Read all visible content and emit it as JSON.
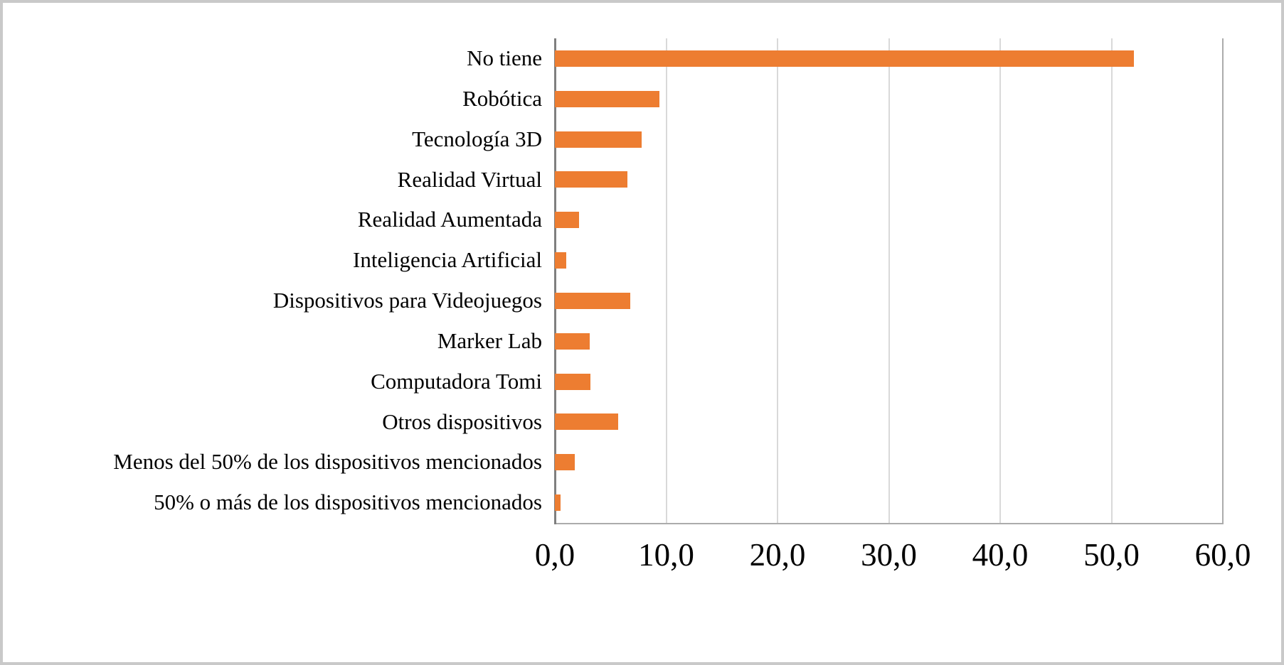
{
  "chart_data": {
    "type": "bar",
    "orientation": "horizontal",
    "categories": [
      "No tiene",
      "Robótica",
      "Tecnología 3D",
      "Realidad Virtual",
      "Realidad Aumentada",
      "Inteligencia Artificial",
      "Dispositivos para Videojuegos",
      "Marker Lab",
      "Computadora Tomi",
      "Otros dispositivos",
      "Menos del 50% de los dispositivos mencionados",
      "50% o más de los dispositivos mencionados"
    ],
    "values": [
      52.0,
      9.4,
      7.8,
      6.5,
      2.2,
      1.0,
      6.8,
      3.1,
      3.2,
      5.7,
      1.8,
      0.5
    ],
    "x_axis": {
      "min": 0,
      "max": 60,
      "step": 10,
      "tick_labels": [
        "0,0",
        "10,0",
        "20,0",
        "30,0",
        "40,0",
        "50,0",
        "60,0"
      ],
      "decimal_separator": ","
    },
    "title": "",
    "xlabel": "",
    "ylabel": "",
    "legend": "none",
    "grid": "vertical-only",
    "colors": {
      "bar": "#ed7d31",
      "gridline": "#d9d9d9",
      "axis_line": "#7f7f7f",
      "plot_border": "#ababab",
      "frame_border": "#c9c9c9",
      "text": "#000000",
      "background": "#ffffff"
    }
  }
}
